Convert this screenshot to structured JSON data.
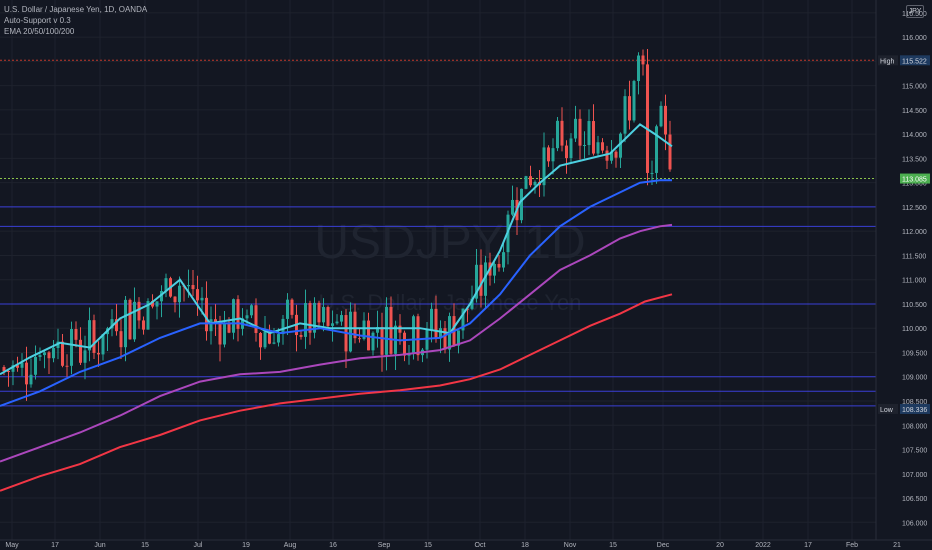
{
  "legend": {
    "symbol_line": "U.S. Dollar / Japanese Yen, 1D, OANDA",
    "indicator_1": "Auto-Support v 0.3",
    "indicator_2": "EMA 20/50/100/200"
  },
  "currency_badge": "JPY",
  "watermark": {
    "symbol": "USDJPY, 1D",
    "description": "U.S. Dollar / Japanese Yen"
  },
  "high_label": "High",
  "high_value": "115.522",
  "low_label": "Low",
  "low_value": "108.336",
  "current_price": "113.085",
  "colors": {
    "background": "#131722",
    "grid": "#1e222d",
    "up": "#26a69a",
    "down": "#ef5350",
    "ema20": "#4dd0e1",
    "ema50": "#2962ff",
    "ema100": "#ab47bc",
    "ema200": "#f23645",
    "support": "#3a3fd6",
    "high_line": "#c0392b",
    "current_line": "#8bc34a"
  },
  "chart_data": {
    "type": "candlestick",
    "title": "U.S. Dollar / Japanese Yen, 1D, OANDA",
    "y_axis_ticks": [
      "106.000",
      "106.500",
      "107.000",
      "107.500",
      "108.000",
      "108.500",
      "109.000",
      "109.500",
      "110.000",
      "110.500",
      "111.000",
      "111.500",
      "112.000",
      "112.500",
      "113.000",
      "113.500",
      "114.000",
      "114.500",
      "115.000",
      "115.500",
      "116.000",
      "116.500"
    ],
    "ylim": [
      105.8,
      116.6
    ],
    "x_axis_ticks": [
      "May",
      "17",
      "Jun",
      "15",
      "Jul",
      "19",
      "Aug",
      "16",
      "Sep",
      "15",
      "Oct",
      "18",
      "Nov",
      "15",
      "Dec",
      "20",
      "2022",
      "17",
      "Feb",
      "21"
    ],
    "support_levels": [
      112.5,
      112.1,
      110.5,
      109.0,
      108.7,
      108.4
    ],
    "ema_series": [
      {
        "name": "EMA 20",
        "values": [
          [
            0,
            109.05
          ],
          [
            30,
            109.4
          ],
          [
            60,
            109.7
          ],
          [
            90,
            109.6
          ],
          [
            120,
            110.2
          ],
          [
            150,
            110.5
          ],
          [
            180,
            111.0
          ],
          [
            210,
            110.1
          ],
          [
            240,
            110.2
          ],
          [
            270,
            109.9
          ],
          [
            300,
            110.1
          ],
          [
            330,
            110.0
          ],
          [
            360,
            110.0
          ],
          [
            390,
            110.0
          ],
          [
            420,
            110.0
          ],
          [
            450,
            109.9
          ],
          [
            470,
            110.5
          ],
          [
            500,
            111.6
          ],
          [
            520,
            112.6
          ],
          [
            540,
            113.0
          ],
          [
            560,
            113.35
          ],
          [
            590,
            113.5
          ],
          [
            610,
            113.6
          ],
          [
            630,
            114.0
          ],
          [
            640,
            114.2
          ],
          [
            655,
            114.0
          ],
          [
            672,
            113.75
          ]
        ]
      },
      {
        "name": "EMA 50",
        "values": [
          [
            0,
            108.4
          ],
          [
            40,
            108.7
          ],
          [
            80,
            109.1
          ],
          [
            120,
            109.4
          ],
          [
            160,
            109.8
          ],
          [
            200,
            110.1
          ],
          [
            240,
            110.1
          ],
          [
            280,
            109.9
          ],
          [
            320,
            110.0
          ],
          [
            360,
            109.85
          ],
          [
            400,
            109.75
          ],
          [
            440,
            109.8
          ],
          [
            470,
            110.1
          ],
          [
            500,
            110.7
          ],
          [
            530,
            111.5
          ],
          [
            560,
            112.1
          ],
          [
            590,
            112.5
          ],
          [
            620,
            112.8
          ],
          [
            640,
            113.0
          ],
          [
            660,
            113.05
          ],
          [
            672,
            113.05
          ]
        ]
      },
      {
        "name": "EMA 100",
        "values": [
          [
            0,
            107.25
          ],
          [
            40,
            107.55
          ],
          [
            80,
            107.85
          ],
          [
            120,
            108.2
          ],
          [
            160,
            108.6
          ],
          [
            200,
            108.9
          ],
          [
            240,
            109.05
          ],
          [
            280,
            109.1
          ],
          [
            320,
            109.25
          ],
          [
            360,
            109.38
          ],
          [
            400,
            109.45
          ],
          [
            440,
            109.55
          ],
          [
            470,
            109.75
          ],
          [
            500,
            110.2
          ],
          [
            530,
            110.7
          ],
          [
            560,
            111.2
          ],
          [
            590,
            111.5
          ],
          [
            620,
            111.85
          ],
          [
            640,
            112.0
          ],
          [
            660,
            112.1
          ],
          [
            672,
            112.13
          ]
        ]
      },
      {
        "name": "EMA 200",
        "values": [
          [
            0,
            106.65
          ],
          [
            40,
            106.95
          ],
          [
            80,
            107.2
          ],
          [
            120,
            107.55
          ],
          [
            160,
            107.8
          ],
          [
            200,
            108.1
          ],
          [
            240,
            108.3
          ],
          [
            280,
            108.45
          ],
          [
            320,
            108.55
          ],
          [
            360,
            108.65
          ],
          [
            400,
            108.72
          ],
          [
            440,
            108.82
          ],
          [
            470,
            108.95
          ],
          [
            500,
            109.15
          ],
          [
            530,
            109.45
          ],
          [
            560,
            109.75
          ],
          [
            590,
            110.05
          ],
          [
            620,
            110.3
          ],
          [
            645,
            110.55
          ],
          [
            672,
            110.7
          ]
        ]
      }
    ]
  }
}
